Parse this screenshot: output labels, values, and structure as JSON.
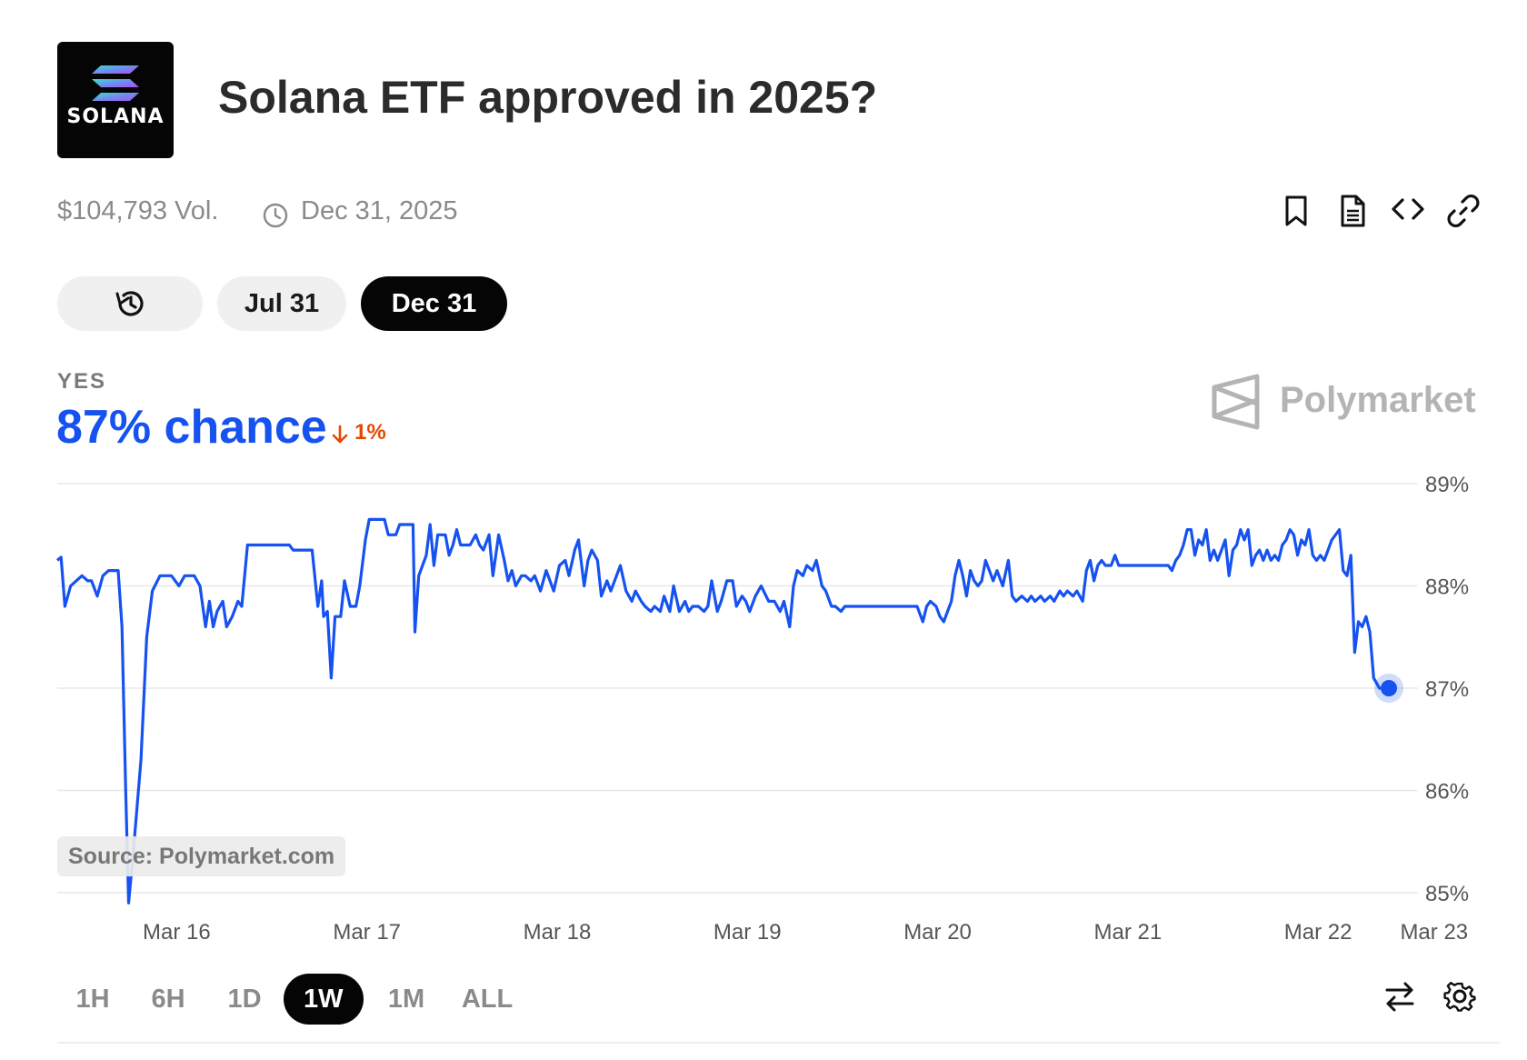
{
  "header": {
    "logo_text": "SOLANA",
    "title": "Solana ETF approved in 2025?"
  },
  "meta": {
    "volume": "$104,793 Vol.",
    "end_date": "Dec 31, 2025"
  },
  "toolbar_icons": [
    "bookmark-icon",
    "document-icon",
    "embed-code-icon",
    "link-icon"
  ],
  "date_tabs": [
    {
      "label": "",
      "icon": "history-icon"
    },
    {
      "label": "Jul 31"
    },
    {
      "label": "Dec 31",
      "selected": true
    }
  ],
  "outcome": {
    "label": "YES",
    "chance": "87% chance",
    "change": "1%",
    "change_direction": "down"
  },
  "brand": {
    "name": "Polymarket"
  },
  "source_label": "Source: Polymarket.com",
  "time_ranges": [
    {
      "label": "1H"
    },
    {
      "label": "6H"
    },
    {
      "label": "1D"
    },
    {
      "label": "1W",
      "active": true
    },
    {
      "label": "1M"
    },
    {
      "label": "ALL"
    }
  ],
  "bottom_icons": [
    "swap-arrows-icon",
    "settings-gear-icon"
  ],
  "colors": {
    "line": "#1652f0",
    "negative": "#e64800",
    "grid": "#e8e8e8",
    "active_bg": "#050505"
  },
  "chart_data": {
    "type": "line",
    "ylim": [
      85,
      89
    ],
    "yticks": [
      89,
      88,
      87,
      86,
      85
    ],
    "ytick_labels": [
      "89%",
      "88%",
      "87%",
      "86%",
      "85%"
    ],
    "xlim": [
      -0.22,
      7.1
    ],
    "xticks": [
      0,
      1,
      2,
      3,
      4,
      5,
      6,
      6.61
    ],
    "xtick_labels": [
      "Mar 16",
      "Mar 17",
      "Mar 18",
      "Mar 19",
      "Mar 20",
      "Mar 21",
      "Mar 22",
      "Mar 23"
    ],
    "grid": true,
    "series": [
      {
        "points": [
          [
            -0.22,
            88.25
          ],
          [
            -0.2,
            88.28
          ],
          [
            -0.18,
            87.8
          ],
          [
            -0.15,
            88.0
          ],
          [
            -0.12,
            88.05
          ],
          [
            -0.09,
            88.1
          ],
          [
            -0.06,
            88.05
          ],
          [
            -0.04,
            88.05
          ],
          [
            -0.01,
            87.9
          ],
          [
            0.02,
            88.1
          ],
          [
            0.05,
            88.15
          ],
          [
            0.1,
            88.15
          ],
          [
            0.12,
            87.6
          ],
          [
            0.14,
            86.0
          ],
          [
            0.155,
            84.9
          ],
          [
            0.18,
            85.4
          ],
          [
            0.22,
            86.3
          ],
          [
            0.25,
            87.5
          ],
          [
            0.28,
            87.95
          ],
          [
            0.32,
            88.1
          ],
          [
            0.38,
            88.1
          ],
          [
            0.42,
            88.0
          ],
          [
            0.45,
            88.1
          ],
          [
            0.5,
            88.1
          ],
          [
            0.53,
            88.0
          ],
          [
            0.56,
            87.6
          ],
          [
            0.58,
            87.85
          ],
          [
            0.6,
            87.6
          ],
          [
            0.62,
            87.75
          ],
          [
            0.65,
            87.85
          ],
          [
            0.67,
            87.6
          ],
          [
            0.7,
            87.7
          ],
          [
            0.73,
            87.85
          ],
          [
            0.75,
            87.8
          ],
          [
            0.78,
            88.4
          ],
          [
            1.0,
            88.4
          ],
          [
            1.02,
            88.35
          ],
          [
            1.12,
            88.35
          ],
          [
            1.15,
            87.8
          ],
          [
            1.17,
            88.05
          ],
          [
            1.18,
            87.7
          ],
          [
            1.2,
            87.75
          ],
          [
            1.22,
            87.1
          ],
          [
            1.24,
            87.7
          ],
          [
            1.27,
            87.7
          ],
          [
            1.29,
            88.05
          ],
          [
            1.32,
            87.8
          ],
          [
            1.35,
            87.8
          ],
          [
            1.37,
            88.0
          ],
          [
            1.4,
            88.45
          ],
          [
            1.42,
            88.65
          ],
          [
            1.5,
            88.65
          ],
          [
            1.52,
            88.5
          ],
          [
            1.56,
            88.5
          ],
          [
            1.58,
            88.6
          ],
          [
            1.65,
            88.6
          ],
          [
            1.66,
            87.55
          ],
          [
            1.68,
            88.1
          ],
          [
            1.72,
            88.3
          ],
          [
            1.74,
            88.6
          ],
          [
            1.76,
            88.2
          ],
          [
            1.78,
            88.5
          ],
          [
            1.82,
            88.5
          ],
          [
            1.84,
            88.3
          ],
          [
            1.86,
            88.4
          ],
          [
            1.88,
            88.55
          ],
          [
            1.9,
            88.4
          ],
          [
            1.95,
            88.4
          ],
          [
            1.98,
            88.5
          ],
          [
            2.0,
            88.4
          ],
          [
            2.02,
            88.35
          ],
          [
            2.05,
            88.5
          ],
          [
            2.07,
            88.1
          ],
          [
            2.1,
            88.5
          ],
          [
            2.13,
            88.25
          ],
          [
            2.15,
            88.05
          ],
          [
            2.17,
            88.15
          ],
          [
            2.19,
            88.0
          ],
          [
            2.22,
            88.1
          ],
          [
            2.24,
            88.1
          ],
          [
            2.27,
            88.05
          ],
          [
            2.29,
            88.1
          ],
          [
            2.32,
            87.95
          ],
          [
            2.35,
            88.15
          ],
          [
            2.37,
            88.05
          ],
          [
            2.39,
            87.95
          ],
          [
            2.42,
            88.2
          ],
          [
            2.45,
            88.25
          ],
          [
            2.47,
            88.1
          ],
          [
            2.5,
            88.35
          ],
          [
            2.52,
            88.45
          ],
          [
            2.55,
            88.0
          ],
          [
            2.57,
            88.25
          ],
          [
            2.59,
            88.35
          ],
          [
            2.62,
            88.25
          ],
          [
            2.64,
            87.9
          ],
          [
            2.67,
            88.05
          ],
          [
            2.69,
            87.95
          ],
          [
            2.72,
            88.1
          ],
          [
            2.74,
            88.2
          ],
          [
            2.77,
            87.95
          ],
          [
            2.8,
            87.85
          ],
          [
            2.82,
            87.95
          ],
          [
            2.85,
            87.85
          ],
          [
            2.87,
            87.8
          ],
          [
            2.9,
            87.75
          ],
          [
            2.92,
            87.8
          ],
          [
            2.95,
            87.75
          ],
          [
            2.97,
            87.9
          ],
          [
            3.0,
            87.75
          ],
          [
            3.02,
            88.0
          ],
          [
            3.05,
            87.75
          ],
          [
            3.08,
            87.85
          ],
          [
            3.1,
            87.75
          ],
          [
            3.12,
            87.8
          ],
          [
            3.15,
            87.8
          ],
          [
            3.18,
            87.75
          ],
          [
            3.2,
            87.8
          ],
          [
            3.22,
            88.05
          ],
          [
            3.25,
            87.75
          ],
          [
            3.27,
            87.85
          ],
          [
            3.3,
            88.05
          ],
          [
            3.33,
            88.05
          ],
          [
            3.35,
            87.8
          ],
          [
            3.38,
            87.9
          ],
          [
            3.4,
            87.85
          ],
          [
            3.42,
            87.75
          ],
          [
            3.45,
            87.9
          ],
          [
            3.48,
            88.0
          ],
          [
            3.52,
            87.85
          ],
          [
            3.55,
            87.85
          ],
          [
            3.58,
            87.75
          ],
          [
            3.6,
            87.85
          ],
          [
            3.63,
            87.6
          ],
          [
            3.65,
            88.0
          ],
          [
            3.67,
            88.15
          ],
          [
            3.7,
            88.1
          ],
          [
            3.72,
            88.2
          ],
          [
            3.75,
            88.15
          ],
          [
            3.77,
            88.25
          ],
          [
            3.8,
            88.0
          ],
          [
            3.82,
            87.95
          ],
          [
            3.85,
            87.8
          ],
          [
            3.87,
            87.8
          ],
          [
            3.9,
            87.75
          ],
          [
            3.92,
            87.8
          ],
          [
            4.3,
            87.8
          ],
          [
            4.33,
            87.65
          ],
          [
            4.35,
            87.8
          ],
          [
            4.37,
            87.85
          ],
          [
            4.4,
            87.8
          ],
          [
            4.42,
            87.7
          ],
          [
            4.44,
            87.65
          ],
          [
            4.46,
            87.75
          ],
          [
            4.48,
            87.85
          ],
          [
            4.5,
            88.1
          ],
          [
            4.52,
            88.25
          ],
          [
            4.54,
            88.1
          ],
          [
            4.56,
            87.9
          ],
          [
            4.58,
            88.15
          ],
          [
            4.6,
            88.05
          ],
          [
            4.62,
            88.0
          ],
          [
            4.64,
            88.05
          ],
          [
            4.66,
            88.25
          ],
          [
            4.68,
            88.15
          ],
          [
            4.7,
            88.05
          ],
          [
            4.72,
            88.15
          ],
          [
            4.75,
            88.0
          ],
          [
            4.78,
            88.25
          ],
          [
            4.8,
            87.9
          ],
          [
            4.82,
            87.85
          ],
          [
            4.85,
            87.9
          ],
          [
            4.88,
            87.85
          ],
          [
            4.9,
            87.9
          ],
          [
            4.92,
            87.85
          ],
          [
            4.95,
            87.9
          ],
          [
            4.97,
            87.85
          ],
          [
            5.0,
            87.9
          ],
          [
            5.02,
            87.85
          ],
          [
            5.05,
            87.95
          ],
          [
            5.07,
            87.9
          ],
          [
            5.09,
            87.95
          ],
          [
            5.12,
            87.9
          ],
          [
            5.14,
            87.95
          ],
          [
            5.17,
            87.85
          ],
          [
            5.19,
            88.15
          ],
          [
            5.21,
            88.25
          ],
          [
            5.23,
            88.05
          ],
          [
            5.25,
            88.2
          ],
          [
            5.27,
            88.25
          ],
          [
            5.29,
            88.2
          ],
          [
            5.32,
            88.2
          ],
          [
            5.34,
            88.3
          ],
          [
            5.36,
            88.2
          ],
          [
            5.62,
            88.2
          ],
          [
            5.64,
            88.15
          ],
          [
            5.66,
            88.25
          ],
          [
            5.68,
            88.3
          ],
          [
            5.7,
            88.4
          ],
          [
            5.72,
            88.55
          ],
          [
            5.74,
            88.55
          ],
          [
            5.76,
            88.3
          ],
          [
            5.78,
            88.45
          ],
          [
            5.8,
            88.4
          ],
          [
            5.82,
            88.55
          ],
          [
            5.84,
            88.25
          ],
          [
            5.86,
            88.35
          ],
          [
            5.88,
            88.25
          ],
          [
            5.9,
            88.35
          ],
          [
            5.92,
            88.45
          ],
          [
            5.94,
            88.1
          ],
          [
            5.96,
            88.35
          ],
          [
            5.98,
            88.4
          ],
          [
            6.0,
            88.55
          ],
          [
            6.02,
            88.45
          ],
          [
            6.04,
            88.55
          ],
          [
            6.06,
            88.2
          ],
          [
            6.08,
            88.3
          ],
          [
            6.1,
            88.35
          ],
          [
            6.12,
            88.25
          ],
          [
            6.14,
            88.35
          ],
          [
            6.16,
            88.25
          ],
          [
            6.18,
            88.3
          ],
          [
            6.2,
            88.25
          ],
          [
            6.22,
            88.4
          ],
          [
            6.24,
            88.45
          ],
          [
            6.26,
            88.55
          ],
          [
            6.28,
            88.5
          ],
          [
            6.3,
            88.3
          ],
          [
            6.32,
            88.45
          ],
          [
            6.34,
            88.4
          ],
          [
            6.36,
            88.55
          ],
          [
            6.38,
            88.3
          ],
          [
            6.4,
            88.25
          ],
          [
            6.42,
            88.3
          ],
          [
            6.44,
            88.25
          ],
          [
            6.46,
            88.35
          ],
          [
            6.48,
            88.45
          ],
          [
            6.5,
            88.5
          ],
          [
            6.52,
            88.55
          ],
          [
            6.54,
            88.15
          ],
          [
            6.56,
            88.1
          ],
          [
            6.58,
            88.3
          ],
          [
            6.6,
            87.35
          ],
          [
            6.62,
            87.65
          ],
          [
            6.64,
            87.6
          ],
          [
            6.66,
            87.7
          ],
          [
            6.68,
            87.55
          ],
          [
            6.7,
            87.1
          ],
          [
            6.73,
            87.0
          ],
          [
            6.78,
            87.0
          ]
        ]
      }
    ]
  }
}
